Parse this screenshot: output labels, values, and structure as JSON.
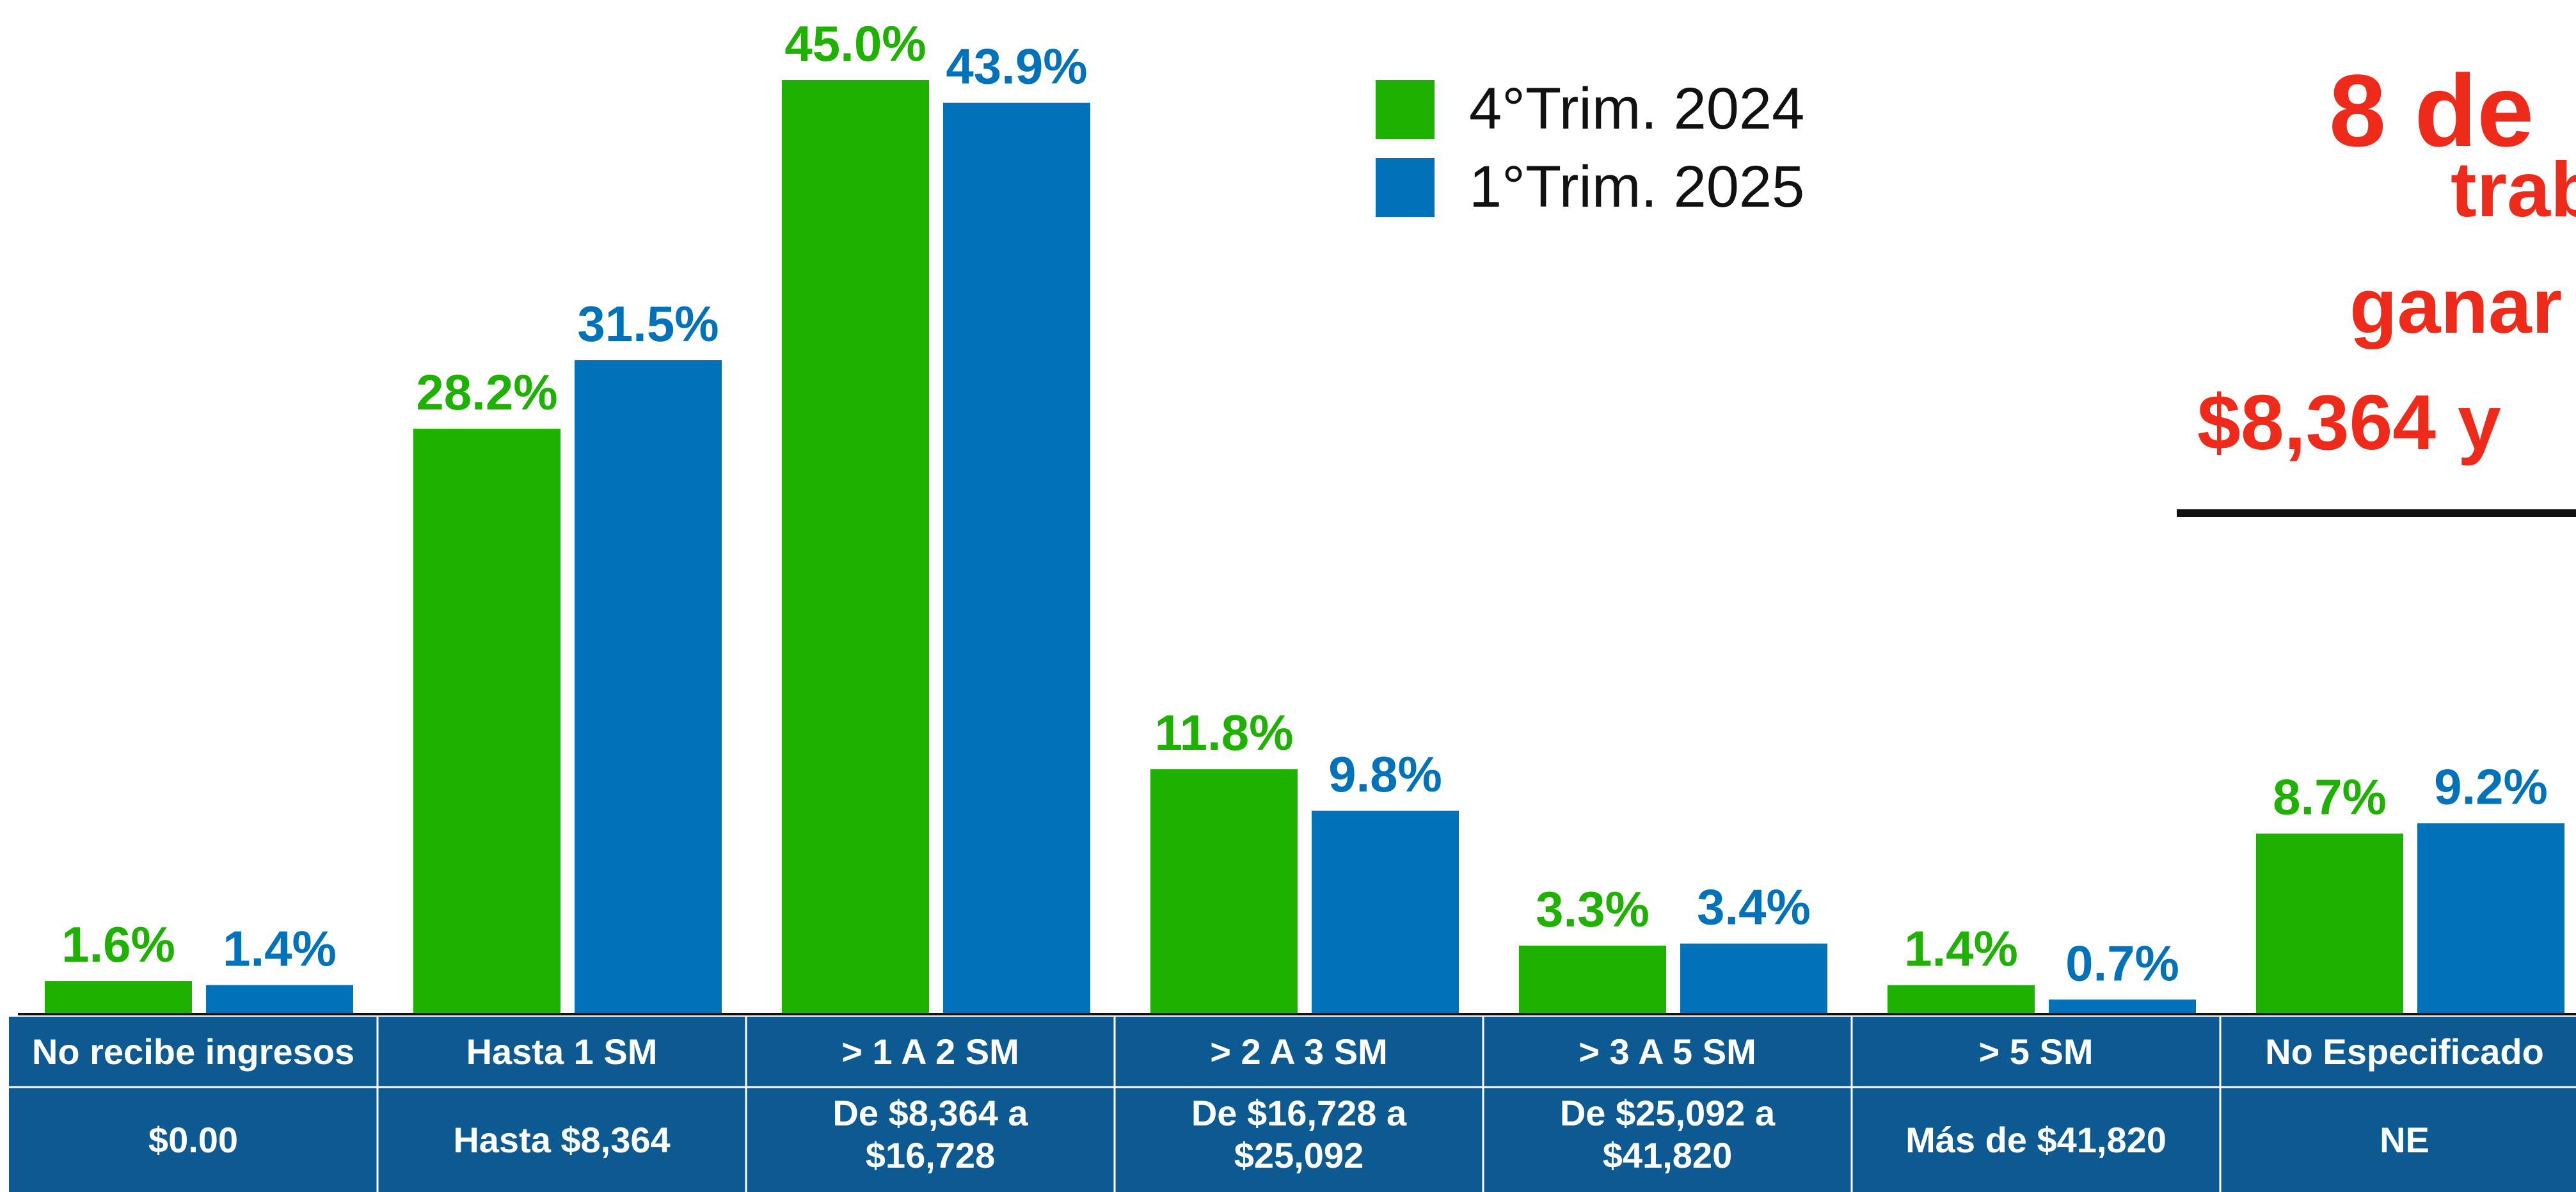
{
  "chart_data": {
    "type": "bar",
    "categories": [
      "No recibe ingresos",
      "Hasta 1 SM",
      "> 1  A 2 SM",
      "> 2  A 3 SM",
      "> 3  A 5 SM",
      "> 5  SM",
      "No Especificado"
    ],
    "ranges": [
      [
        "$0.00"
      ],
      [
        "Hasta $8,364"
      ],
      [
        "De $8,364  a",
        "$16,728"
      ],
      [
        "De $16,728 a",
        "$25,092"
      ],
      [
        "De $25,092 a",
        "$41,820"
      ],
      [
        "Más de $41,820"
      ],
      [
        "NE"
      ]
    ],
    "series": [
      {
        "name": "4°Trim. 2024",
        "color": "#1fb100",
        "values": [
          1.6,
          28.2,
          45.0,
          11.8,
          3.3,
          1.4,
          8.7
        ],
        "labels": [
          "1.6%",
          "28.2%",
          "45.0%",
          "11.8%",
          "3.3%",
          "1.4%",
          "8.7%"
        ]
      },
      {
        "name": "1°Trim. 2025",
        "color": "#0072b9",
        "values": [
          1.4,
          31.5,
          43.9,
          9.8,
          3.4,
          0.7,
          9.2
        ],
        "labels": [
          "1.4%",
          "31.5%",
          "43.9%",
          "9.8%",
          "3.4%",
          "0.7%",
          "9.2%"
        ]
      }
    ],
    "ylim": [
      0,
      45
    ],
    "grid": false,
    "legend": "top-center",
    "table_color": "#0d5a93"
  },
  "headline": {
    "lines": [
      "8 de",
      "trab",
      "ganar",
      "$8,364 y"
    ],
    "color": "#ee2a1b"
  }
}
